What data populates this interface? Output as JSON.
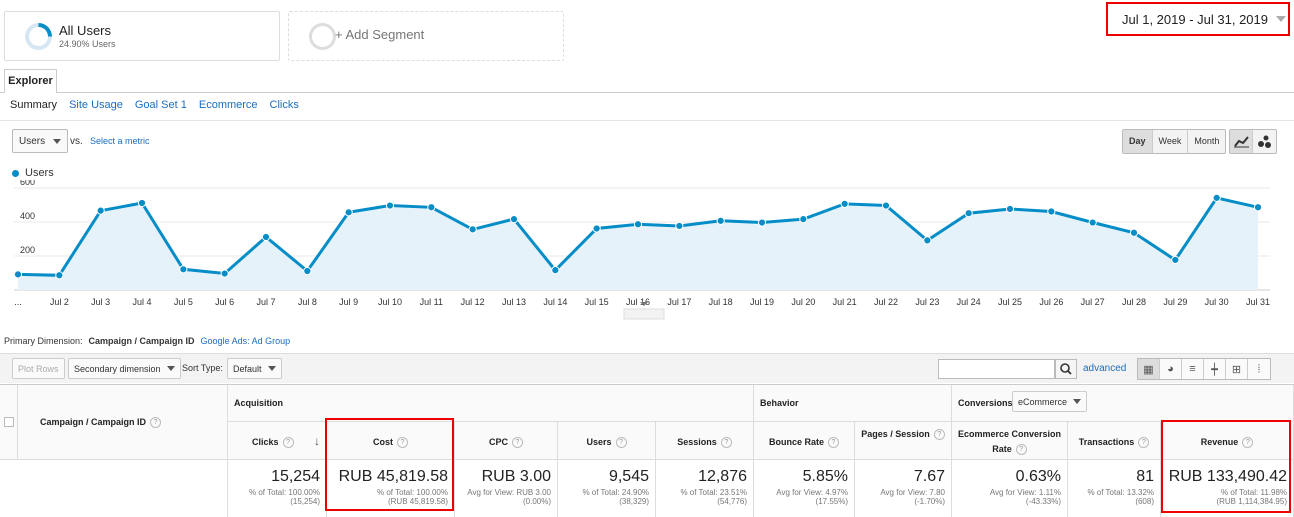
{
  "segments": {
    "all_users": {
      "name": "All Users",
      "sub": "24.90% Users"
    },
    "add_segment": {
      "label": "+ Add Segment"
    }
  },
  "date_range": "Jul 1, 2019 - Jul 31, 2019",
  "tabs": {
    "explorer": "Explorer"
  },
  "subtabs": [
    "Summary",
    "Site Usage",
    "Goal Set 1",
    "Ecommerce",
    "Clicks"
  ],
  "chart_controls": {
    "metric": "Users",
    "vs": "vs.",
    "select_metric": "Select a metric",
    "granularity": [
      "Day",
      "Week",
      "Month"
    ],
    "granularity_selected": "Day"
  },
  "chart_data": {
    "type": "area",
    "series": [
      {
        "name": "Users",
        "color": "#058dc7",
        "values": [
          80,
          75,
          455,
          500,
          110,
          85,
          300,
          100,
          445,
          485,
          475,
          345,
          405,
          105,
          350,
          375,
          365,
          395,
          385,
          405,
          495,
          485,
          280,
          440,
          465,
          450,
          385,
          325,
          165,
          530,
          475
        ]
      }
    ],
    "x_tick_labels": [
      "...",
      "Jul 2",
      "Jul 3",
      "Jul 4",
      "Jul 5",
      "Jul 6",
      "Jul 7",
      "Jul 8",
      "Jul 9",
      "Jul 10",
      "Jul 11",
      "Jul 12",
      "Jul 13",
      "Jul 14",
      "Jul 15",
      "Jul 16",
      "Jul 17",
      "Jul 18",
      "Jul 19",
      "Jul 20",
      "Jul 21",
      "Jul 22",
      "Jul 23",
      "Jul 24",
      "Jul 25",
      "Jul 26",
      "Jul 27",
      "Jul 28",
      "Jul 29",
      "Jul 30",
      "Jul 31"
    ],
    "y_ticks": [
      200,
      400,
      600
    ],
    "ylim": [
      0,
      600
    ],
    "grid": true,
    "legend_placement": "top-left"
  },
  "primary_dimension": {
    "label": "Primary Dimension:",
    "current": "Campaign / Campaign ID",
    "alt": "Google Ads: Ad Group"
  },
  "table_toolbar": {
    "plot_rows": "Plot Rows",
    "secondary_dimension": "Secondary dimension",
    "sort_type_label": "Sort Type:",
    "sort_type_value": "Default",
    "advanced": "advanced"
  },
  "table": {
    "dim_header": "Campaign / Campaign ID",
    "groups": {
      "acquisition": "Acquisition",
      "behavior": "Behavior",
      "conversions": "Conversions",
      "conversions_select": "eCommerce"
    },
    "columns": [
      {
        "header": "Clicks",
        "value": "15,254",
        "sub1": "% of Total: 100.00%",
        "sub2": "(15,254)"
      },
      {
        "header": "Cost",
        "value": "RUB 45,819.58",
        "sub1": "% of Total: 100.00%",
        "sub2": "(RUB 45,819.58)"
      },
      {
        "header": "CPC",
        "value": "RUB 3.00",
        "sub1": "Avg for View: RUB 3.00",
        "sub2": "(0.00%)"
      },
      {
        "header": "Users",
        "value": "9,545",
        "sub1": "% of Total: 24.90%",
        "sub2": "(38,329)"
      },
      {
        "header": "Sessions",
        "value": "12,876",
        "sub1": "% of Total: 23.51%",
        "sub2": "(54,776)"
      },
      {
        "header": "Bounce Rate",
        "value": "5.85%",
        "sub1": "Avg for View: 4.97%",
        "sub2": "(17.55%)"
      },
      {
        "header": "Pages / Session",
        "value": "7.67",
        "sub1": "Avg for View: 7.80",
        "sub2": "(-1.70%)"
      },
      {
        "header": "Ecommerce Conversion Rate",
        "value": "0.63%",
        "sub1": "Avg for View: 1.11%",
        "sub2": "(-43.33%)"
      },
      {
        "header": "Transactions",
        "value": "81",
        "sub1": "% of Total: 13.32%",
        "sub2": "(608)"
      },
      {
        "header": "Revenue",
        "value": "RUB 133,490.42",
        "sub1": "% of Total: 11.98%",
        "sub2": "(RUB 1,114,384.95)"
      }
    ]
  }
}
